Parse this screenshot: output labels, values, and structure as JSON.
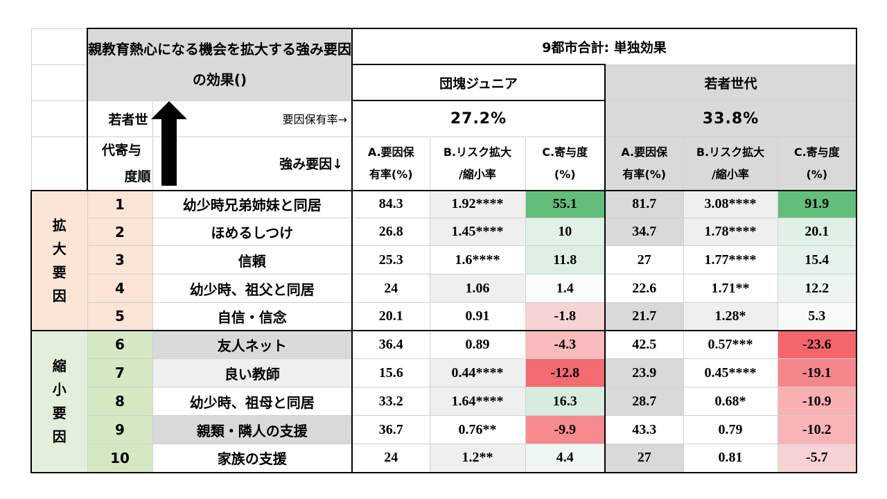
{
  "header": {
    "title": "親教育熱心になる機会を拡大する強み要因の効果()",
    "nine_city": "9都市合計: 単独効果",
    "group1": "団塊ジュニア",
    "group2": "若者世代",
    "rank_label_1": "若者世",
    "rank_label_2": "代寄与",
    "rank_label_3": "度順",
    "possession_label": "要因保有率→",
    "strength_label": "強み要因↓",
    "rate1": "27.2%",
    "rate2": "33.8%",
    "colA_1": "A.要因保",
    "colA_2": "有率(%)",
    "colB_1": "B.リスク拡大",
    "colB_2": "/縮小率",
    "colC_1": "C.寄与度",
    "colC_2": "(%)"
  },
  "groups": {
    "expand": "拡大要因",
    "shrink": "縮小要因"
  },
  "rows": [
    {
      "rank": "1",
      "factor": "幼少時兄弟姉妹と同居",
      "a1": "84.3",
      "b1": "1.92****",
      "c1": "55.1",
      "a2": "81.7",
      "b2": "3.08****",
      "c2": "91.9"
    },
    {
      "rank": "2",
      "factor": "ほめるしつけ",
      "a1": "26.8",
      "b1": "1.45****",
      "c1": "10",
      "a2": "34.7",
      "b2": "1.78****",
      "c2": "20.1"
    },
    {
      "rank": "3",
      "factor": "信頼",
      "a1": "25.3",
      "b1": "1.6****",
      "c1": "11.8",
      "a2": "27",
      "b2": "1.77****",
      "c2": "15.4"
    },
    {
      "rank": "4",
      "factor": "幼少時、祖父と同居",
      "a1": "24",
      "b1": "1.06",
      "c1": "1.4",
      "a2": "22.6",
      "b2": "1.71**",
      "c2": "12.2"
    },
    {
      "rank": "5",
      "factor": "自信・信念",
      "a1": "20.1",
      "b1": "0.91",
      "c1": "-1.8",
      "a2": "21.7",
      "b2": "1.28*",
      "c2": "5.3"
    },
    {
      "rank": "6",
      "factor": "友人ネット",
      "a1": "36.4",
      "b1": "0.89",
      "c1": "-4.3",
      "a2": "42.5",
      "b2": "0.57***",
      "c2": "-23.6"
    },
    {
      "rank": "7",
      "factor": "良い教師",
      "a1": "15.6",
      "b1": "0.44****",
      "c1": "-12.8",
      "a2": "23.9",
      "b2": "0.45****",
      "c2": "-19.1"
    },
    {
      "rank": "8",
      "factor": "幼少時、祖母と同居",
      "a1": "33.2",
      "b1": "1.64****",
      "c1": "16.3",
      "a2": "28.7",
      "b2": "0.68*",
      "c2": "-10.9"
    },
    {
      "rank": "9",
      "factor": "親類・隣人の支援",
      "a1": "36.7",
      "b1": "0.76**",
      "c1": "-9.9",
      "a2": "43.3",
      "b2": "0.79",
      "c2": "-10.2"
    },
    {
      "rank": "10",
      "factor": "家族の支援",
      "a1": "24",
      "b1": "1.2**",
      "c1": "4.4",
      "a2": "27",
      "b2": "0.81",
      "c2": "-5.7"
    }
  ],
  "colors": {
    "c1": [
      "#63be7b",
      "#e2f1e6",
      "#dcefe2",
      "#fafcfb",
      "#f8d3d5",
      "#f8babd",
      "#f26b70",
      "#d7ecde",
      "#f58a8f",
      "#eef7f1"
    ],
    "c2": [
      "#63be7b",
      "#dff0e4",
      "#e6f3ea",
      "#ecf6ef",
      "#f6fbf8",
      "#f2656b",
      "#f5878c",
      "#f8b0b3",
      "#f8b3b6",
      "#f8d3d5"
    ],
    "factor_bg": [
      "#ffffff",
      "#ffffff",
      "#ffffff",
      "#ffffff",
      "#ffffff",
      "#d9d9d9",
      "#efefef",
      "#ffffff",
      "#d9d9d9",
      "#ffffff"
    ],
    "b1_bg": [
      "#efefef",
      "#efefef",
      "#ffffff",
      "#efefef",
      "#ffffff",
      "#ffffff",
      "#efefef",
      "#efefef",
      "#ffffff",
      "#efefef"
    ],
    "b2_bg": [
      "#efefef",
      "#efefef",
      "#ffffff",
      "#ffffff",
      "#efefef",
      "#ffffff",
      "#ffffff",
      "#ffffff",
      "#ffffff",
      "#ffffff"
    ],
    "rank_bg": [
      "#fbe5d6",
      "#fbe5d6",
      "#fbe5d6",
      "#fbe5d6",
      "#fbe5d6",
      "#d5e8c4",
      "#d5e8c4",
      "#d5e8c4",
      "#d5e8c4",
      "#d5e8c4"
    ],
    "a2_bg": [
      "#d9d9d9",
      "#d9d9d9",
      "#ffffff",
      "#ffffff",
      "#d9d9d9",
      "#ffffff",
      "#d9d9d9",
      "#d9d9d9",
      "#ffffff",
      "#d9d9d9"
    ]
  }
}
